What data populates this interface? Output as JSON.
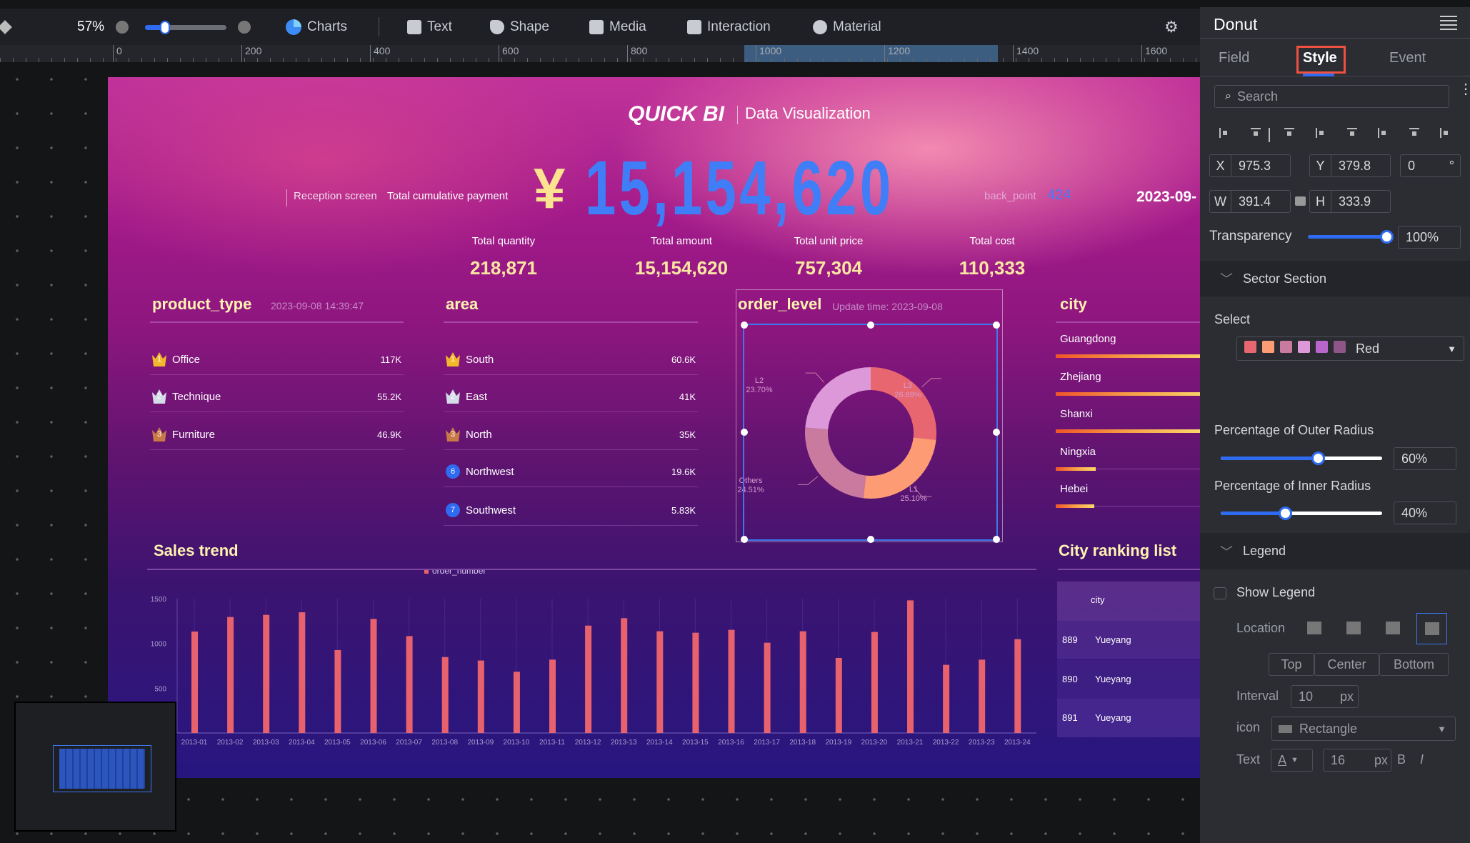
{
  "toolbar": {
    "zoom": "57%",
    "zoom_level": 57,
    "items": [
      "Charts",
      "Text",
      "Shape",
      "Media",
      "Interaction",
      "Material"
    ]
  },
  "ruler": {
    "labels": [
      "0",
      "200",
      "400",
      "600",
      "800",
      "1000",
      "1200",
      "1400",
      "1600"
    ]
  },
  "dashboard": {
    "brand": "QUICK BI",
    "subtitle": "Data Visualization",
    "reception_label": "Reception screen",
    "payment_label": "Total cumulative payment",
    "currency": "¥",
    "total_payment": "15,154,620",
    "back_point_label": "back_point",
    "back_point_value": "424",
    "date": "2023-09-",
    "kpis": [
      {
        "label": "Total quantity",
        "value": "218,871"
      },
      {
        "label": "Total amount",
        "value": "15,154,620"
      },
      {
        "label": "Total unit price",
        "value": "757,304"
      },
      {
        "label": "Total cost",
        "value": "110,333"
      }
    ],
    "product_type": {
      "title": "product_type",
      "timestamp": "2023-09-08 14:39:47",
      "rows": [
        {
          "rank": "1",
          "name": "Office",
          "value": "117K"
        },
        {
          "rank": "2",
          "name": "Technique",
          "value": "55.2K"
        },
        {
          "rank": "3",
          "name": "Furniture",
          "value": "46.9K"
        }
      ]
    },
    "area": {
      "title": "area",
      "rows": [
        {
          "rank": "1",
          "name": "South",
          "value": "60.6K"
        },
        {
          "rank": "2",
          "name": "East",
          "value": "41K"
        },
        {
          "rank": "3",
          "name": "North",
          "value": "35K"
        },
        {
          "rank": "6",
          "name": "Northwest",
          "value": "19.6K"
        },
        {
          "rank": "7",
          "name": "Southwest",
          "value": "5.83K"
        }
      ]
    },
    "order_level": {
      "title": "order_level",
      "update": "Update time: 2023-09-08"
    },
    "city": {
      "title": "city",
      "items": [
        {
          "name": "Guangdong",
          "level": 1.0
        },
        {
          "name": "Zhejiang",
          "level": 1.0
        },
        {
          "name": "Shanxi",
          "level": 0.94
        },
        {
          "name": "Ningxia",
          "level": 0.26
        },
        {
          "name": "Hebei",
          "level": 0.25
        }
      ]
    },
    "sales_trend": {
      "title": "Sales trend"
    },
    "ranking": {
      "title": "City ranking list",
      "header": "city",
      "rows": [
        {
          "rank": "889",
          "city": "Yueyang"
        },
        {
          "rank": "890",
          "city": "Yueyang"
        },
        {
          "rank": "891",
          "city": "Yueyang"
        }
      ]
    }
  },
  "chart_data": [
    {
      "type": "pie",
      "variant": "donut",
      "title": "order_level",
      "start": "top",
      "direction": "clockwise",
      "slices": [
        {
          "label": "L3",
          "value": 26.69,
          "text": "26.69%",
          "color": "#e8666f"
        },
        {
          "label": "L1",
          "value": 25.1,
          "text": "25.10%",
          "color": "#fd9b74"
        },
        {
          "label": "Others",
          "value": 24.51,
          "text": "24.51%",
          "color": "#c97a9e"
        },
        {
          "label": "L2",
          "value": 23.7,
          "text": "23.70%",
          "color": "#dc98d8"
        }
      ]
    },
    {
      "type": "bar",
      "title": "Sales trend",
      "legend": "order_number",
      "legend_position": "top",
      "color": "#e8626e",
      "ylim": [
        0,
        1500
      ],
      "yticks": [
        "500",
        "1000",
        "1500"
      ],
      "categories": [
        "2013-01",
        "2013-02",
        "2013-03",
        "2013-04",
        "2013-05",
        "2013-06",
        "2013-07",
        "2013-08",
        "2013-09",
        "2013-10",
        "2013-11",
        "2013-12",
        "2013-13",
        "2013-14",
        "2013-15",
        "2013-16",
        "2013-17",
        "2013-18",
        "2013-19",
        "2013-20",
        "2013-21",
        "2013-22",
        "2013-23",
        "2013-24"
      ],
      "values": [
        1133,
        1295,
        1319,
        1348,
        926,
        1274,
        1082,
        848,
        809,
        684,
        819,
        1199,
        1282,
        1136,
        1120,
        1152,
        1008,
        1136,
        838,
        1128,
        1481,
        761,
        819,
        1048
      ]
    }
  ],
  "panel": {
    "title": "Donut",
    "tabs": [
      "Field",
      "Style",
      "Event"
    ],
    "active_tab": "Style",
    "search_placeholder": "Search",
    "x_label": "X",
    "x": "975.3",
    "y_label": "Y",
    "y": "379.8",
    "angle": "0",
    "deg": "°",
    "w_label": "W",
    "w": "391.4",
    "h_label": "H",
    "h": "333.9",
    "transparency_label": "Transparency",
    "transparency": "100%",
    "transparency_level": 100,
    "sector_section": "Sector Section",
    "select_label": "Select",
    "palette_name": "Red",
    "palette": [
      "#e8666f",
      "#fd9b74",
      "#c97a9e",
      "#dc98d8",
      "#b966cc",
      "#8f5588"
    ],
    "outer_label": "Percentage of Outer Radius",
    "outer": "60%",
    "outer_level": 60,
    "inner_label": "Percentage of Inner Radius",
    "inner": "40%",
    "inner_level": 40,
    "legend_section": "Legend",
    "show_legend": "Show Legend",
    "show_legend_checked": false,
    "location_label": "Location",
    "vpos": [
      "Top",
      "Center",
      "Bottom"
    ],
    "interval_label": "Interval",
    "interval": "10",
    "unit": "px",
    "icon_label": "icon",
    "icon_value": "Rectangle",
    "text_label": "Text",
    "text_color_glyph": "A",
    "font_size": "16",
    "bold": "B",
    "italic": "I"
  }
}
